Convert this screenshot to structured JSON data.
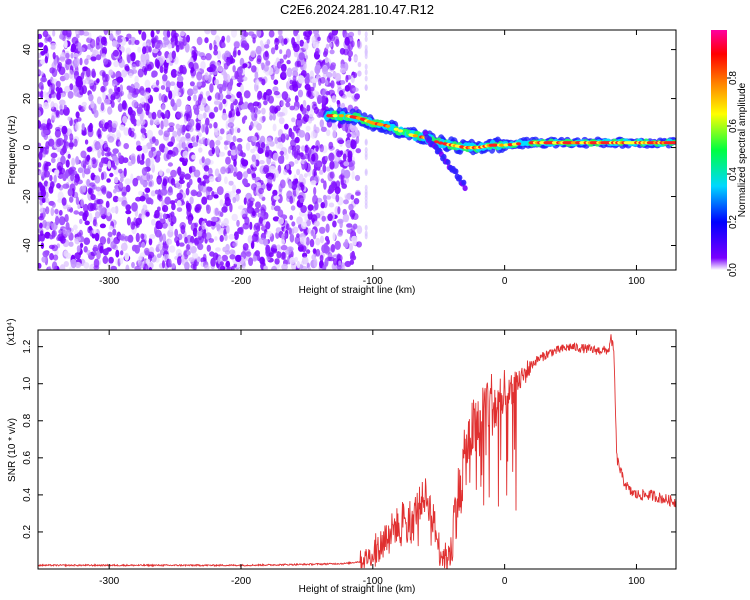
{
  "title": "C2E6.2024.281.10.47.R12",
  "chart_data": [
    {
      "type": "heatmap",
      "xlabel": "Height of straight line (km)",
      "ylabel": "Frequency (Hz)",
      "xlim": [
        -354,
        130
      ],
      "ylim": [
        -50,
        48
      ],
      "xticks": [
        -300,
        -200,
        -100,
        0,
        100
      ],
      "yticks": [
        -40,
        -20,
        0,
        20,
        40
      ],
      "grid": false,
      "colorbar": {
        "label": "Normalized spectral amplitude",
        "range": [
          0,
          1
        ],
        "ticks": [
          0.0,
          0.2,
          0.4,
          0.6,
          0.8
        ],
        "tick_labels": [
          "0.0",
          "0.2",
          "0.4",
          "0.6",
          "0.8"
        ],
        "colormap": [
          "#ffffff",
          "#7a00ff",
          "#0000ff",
          "#00d8ff",
          "#00ff40",
          "#ffff00",
          "#ff8000",
          "#ff0000",
          "#ff00a0"
        ]
      },
      "features": {
        "noise_region_x": [
          -354,
          -118
        ],
        "signal_track": {
          "x": [
            -135,
            -120,
            -110,
            -100,
            -90,
            -80,
            -70,
            -60,
            -50,
            -40,
            -30,
            -20,
            -10,
            0,
            20,
            40,
            60,
            80,
            100,
            130
          ],
          "y": [
            13,
            13,
            12,
            10,
            9,
            7,
            5,
            4,
            2,
            1,
            0,
            0,
            1,
            1,
            2,
            2,
            2,
            2,
            2,
            2
          ]
        },
        "branch": {
          "x": [
            -60,
            -45,
            -35,
            -30
          ],
          "y": [
            5,
            -5,
            -12,
            -16
          ]
        }
      }
    },
    {
      "type": "line",
      "xlabel": "Height of straight line (km)",
      "ylabel": "SNR (10 * v/v)",
      "y_multiplier": "(x10⁴)",
      "xlim": [
        -354,
        130
      ],
      "ylim": [
        0,
        1.29
      ],
      "xticks": [
        -300,
        -200,
        -100,
        0,
        100
      ],
      "yticks": [
        0.2,
        0.4,
        0.6,
        0.8,
        1.0,
        1.2
      ],
      "ytick_labels": [
        "0.2",
        "0.4",
        "0.6",
        "0.8",
        "1.0",
        "1.2"
      ],
      "grid": false,
      "series": [
        {
          "color": "#e03030",
          "x": [
            -354,
            -300,
            -200,
            -150,
            -120,
            -110,
            -100,
            -95,
            -90,
            -80,
            -75,
            -70,
            -65,
            -60,
            -55,
            -50,
            -45,
            -40,
            -38,
            -35,
            -30,
            -25,
            -20,
            -15,
            -10,
            -5,
            0,
            5,
            10,
            15,
            20,
            25,
            30,
            35,
            40,
            50,
            60,
            70,
            79,
            81,
            83,
            85,
            90,
            95,
            100,
            110,
            120,
            130
          ],
          "y": [
            0.02,
            0.02,
            0.02,
            0.025,
            0.03,
            0.04,
            0.08,
            0.12,
            0.18,
            0.25,
            0.3,
            0.28,
            0.35,
            0.4,
            0.3,
            0.12,
            0.05,
            0.1,
            0.3,
            0.4,
            0.6,
            0.75,
            0.75,
            0.9,
            0.9,
            0.85,
            0.9,
            0.95,
            1.0,
            1.05,
            1.1,
            1.13,
            1.15,
            1.17,
            1.18,
            1.2,
            1.19,
            1.18,
            1.18,
            1.25,
            1.15,
            0.6,
            0.48,
            0.42,
            0.4,
            0.4,
            0.38,
            0.36
          ]
        }
      ]
    }
  ]
}
